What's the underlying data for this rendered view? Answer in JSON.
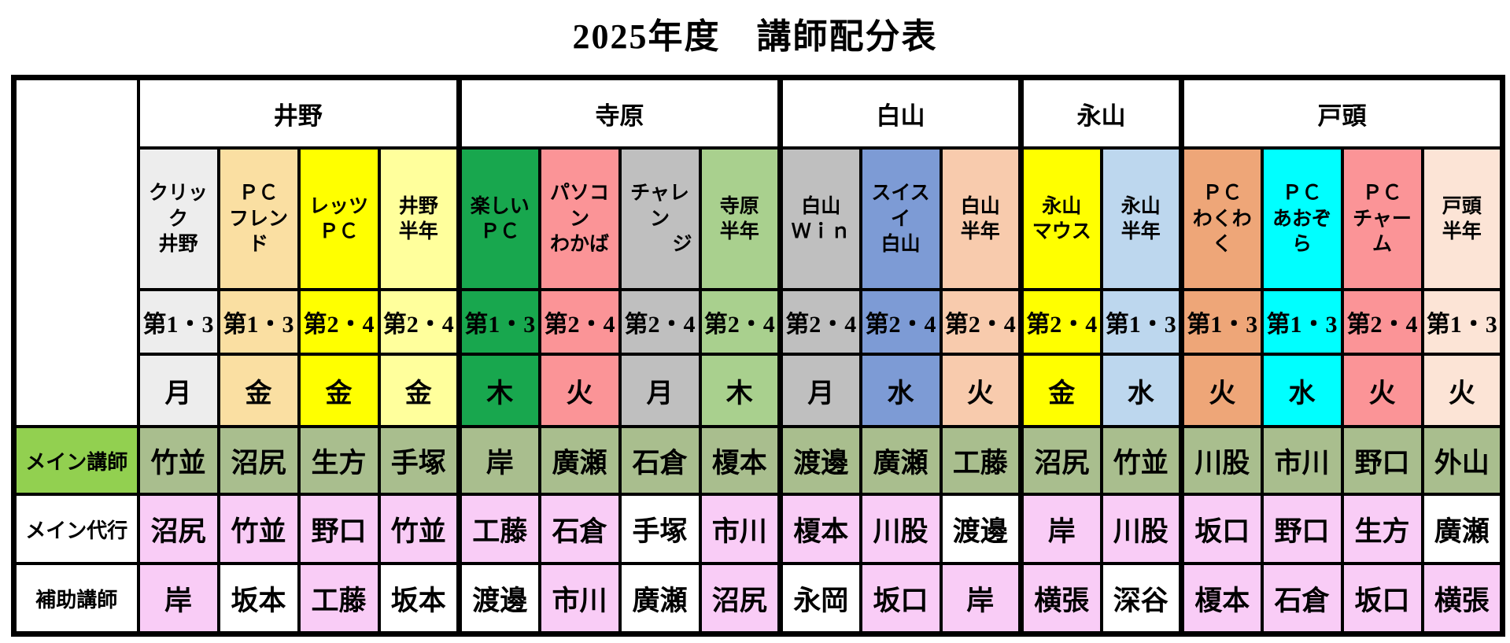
{
  "title": "2025年度　講師配分表",
  "row_labels": {
    "main": "メイン講師",
    "deputy": "メイン代行",
    "assistant": "補助講師"
  },
  "colors": {
    "border": "#000000",
    "main_label_bg": "#92D050",
    "main_row_bg": "#A9BE8E",
    "pink_cell": "#F9CCF6",
    "white_cell": "#FFFFFF"
  },
  "groups": [
    {
      "label": "井野",
      "span": 4
    },
    {
      "label": "寺原",
      "span": 4
    },
    {
      "label": "白山",
      "span": 3
    },
    {
      "label": "永山",
      "span": 2
    },
    {
      "label": "戸頭",
      "span": 4
    }
  ],
  "columns": [
    {
      "name1": "クリック",
      "name2": "井野",
      "bg": "#EDEDED",
      "week": "第1・3",
      "day": "月",
      "main": "竹並",
      "deputy": "沼尻",
      "deputy_bg": "#F9CCF6",
      "assistant": "岸",
      "assistant_bg": "#F9CCF6"
    },
    {
      "name1": "ＰＣ",
      "name2": "フレンド",
      "bg": "#FADFA2",
      "week": "第1・3",
      "day": "金",
      "main": "沼尻",
      "deputy": "竹並",
      "deputy_bg": "#F9CCF6",
      "assistant": "坂本",
      "assistant_bg": "#FFFFFF"
    },
    {
      "name1": "レッツ",
      "name2": "ＰＣ",
      "bg": "#FFFF00",
      "week": "第2・4",
      "day": "金",
      "main": "生方",
      "deputy": "野口",
      "deputy_bg": "#F9CCF6",
      "assistant": "工藤",
      "assistant_bg": "#F9CCF6"
    },
    {
      "name1": "井野",
      "name2": "半年",
      "bg": "#FFFF9C",
      "week": "第2・4",
      "day": "金",
      "main": "手塚",
      "deputy": "竹並",
      "deputy_bg": "#F9CCF6",
      "assistant": "坂本",
      "assistant_bg": "#FFFFFF"
    },
    {
      "name1": "楽しい",
      "name2": "ＰＣ",
      "bg": "#18A74E",
      "week": "第1・3",
      "day": "木",
      "main": "岸",
      "deputy": "工藤",
      "deputy_bg": "#F9CCF6",
      "assistant": "渡邊",
      "assistant_bg": "#FFFFFF"
    },
    {
      "name1": "パソコン",
      "name2": "わかば",
      "bg": "#FB9497",
      "week": "第2・4",
      "day": "火",
      "main": "廣瀬",
      "deputy": "石倉",
      "deputy_bg": "#F9CCF6",
      "assistant": "市川",
      "assistant_bg": "#F9CCF6"
    },
    {
      "name1": "チャレン",
      "name2": "ジ",
      "bg": "#BFBFBF",
      "week": "第2・4",
      "day": "月",
      "main": "石倉",
      "deputy": "手塚",
      "deputy_bg": "#FFFFFF",
      "assistant": "廣瀬",
      "assistant_bg": "#FFFFFF"
    },
    {
      "name1": "寺原",
      "name2": "半年",
      "bg": "#A9D08E",
      "week": "第2・4",
      "day": "木",
      "main": "榎本",
      "deputy": "市川",
      "deputy_bg": "#F9CCF6",
      "assistant": "沼尻",
      "assistant_bg": "#F9CCF6"
    },
    {
      "name1": "白山",
      "name2": "Ｗｉｎ",
      "bg": "#BFBFBF",
      "week": "第2・4",
      "day": "月",
      "main": "渡邊",
      "deputy": "榎本",
      "deputy_bg": "#F9CCF6",
      "assistant": "永岡",
      "assistant_bg": "#FFFFFF"
    },
    {
      "name1": "スイスイ",
      "name2": "白山",
      "bg": "#7D9BD5",
      "week": "第2・4",
      "day": "水",
      "main": "廣瀬",
      "deputy": "川股",
      "deputy_bg": "#F9CCF6",
      "assistant": "坂口",
      "assistant_bg": "#F9CCF6"
    },
    {
      "name1": "白山",
      "name2": "半年",
      "bg": "#F8CBAD",
      "week": "第2・4",
      "day": "火",
      "main": "工藤",
      "deputy": "渡邊",
      "deputy_bg": "#FFFFFF",
      "assistant": "岸",
      "assistant_bg": "#F9CCF6"
    },
    {
      "name1": "永山",
      "name2": "マウス",
      "bg": "#FFFF00",
      "week": "第2・4",
      "day": "金",
      "main": "沼尻",
      "deputy": "岸",
      "deputy_bg": "#F9CCF6",
      "assistant": "横張",
      "assistant_bg": "#F9CCF6"
    },
    {
      "name1": "永山",
      "name2": "半年",
      "bg": "#BDD7EE",
      "week": "第1・3",
      "day": "水",
      "main": "竹並",
      "deputy": "川股",
      "deputy_bg": "#F9CCF6",
      "assistant": "深谷",
      "assistant_bg": "#FFFFFF"
    },
    {
      "name1": "ＰＣ",
      "name2": "わくわく",
      "bg": "#EEA678",
      "week": "第1・3",
      "day": "火",
      "main": "川股",
      "deputy": "坂口",
      "deputy_bg": "#F9CCF6",
      "assistant": "榎本",
      "assistant_bg": "#F9CCF6"
    },
    {
      "name1": "ＰＣ",
      "name2": "あおぞら",
      "bg": "#00FFFF",
      "week": "第1・3",
      "day": "水",
      "main": "市川",
      "deputy": "野口",
      "deputy_bg": "#F9CCF6",
      "assistant": "石倉",
      "assistant_bg": "#F9CCF6"
    },
    {
      "name1": "ＰＣ",
      "name2": "チャーム",
      "bg": "#FB9497",
      "week": "第2・4",
      "day": "火",
      "main": "野口",
      "deputy": "生方",
      "deputy_bg": "#F9CCF6",
      "assistant": "坂口",
      "assistant_bg": "#F9CCF6"
    },
    {
      "name1": "戸頭",
      "name2": "半年",
      "bg": "#FCE4D6",
      "week": "第1・3",
      "day": "火",
      "main": "外山",
      "deputy": "廣瀬",
      "deputy_bg": "#FFFFFF",
      "assistant": "横張",
      "assistant_bg": "#F9CCF6"
    }
  ]
}
